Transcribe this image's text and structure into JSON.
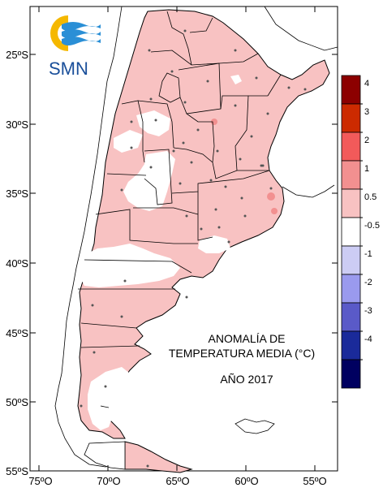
{
  "logo": {
    "text": "SMN"
  },
  "map": {
    "title_line1": "ANOMALÍA DE",
    "title_line2": "TEMPERATURA MEDIA (°C)",
    "year": "AÑO 2017",
    "lat_labels": [
      "25ºS",
      "30ºS",
      "35ºS",
      "40ºS",
      "45ºS",
      "50ºS",
      "55ºS"
    ],
    "lon_labels": [
      "75ºO",
      "70ºO",
      "65ºO",
      "60ºO",
      "55ºO"
    ]
  },
  "legend": {
    "labels": [
      "4",
      "3",
      "2",
      "1",
      "0.5",
      "-0.5",
      "-1",
      "-2",
      "-3",
      "-4"
    ],
    "colors": [
      "#8c0000",
      "#cc2a00",
      "#f25a5a",
      "#f29090",
      "#f8c2c2",
      "#ffffff",
      "#ccccf4",
      "#9a9aee",
      "#5a5ac8",
      "#1a2a9a",
      "#000060"
    ]
  },
  "colors": {
    "positive_anomaly": "#f8c2c2",
    "neutral": "#ffffff",
    "border": "#000000"
  }
}
